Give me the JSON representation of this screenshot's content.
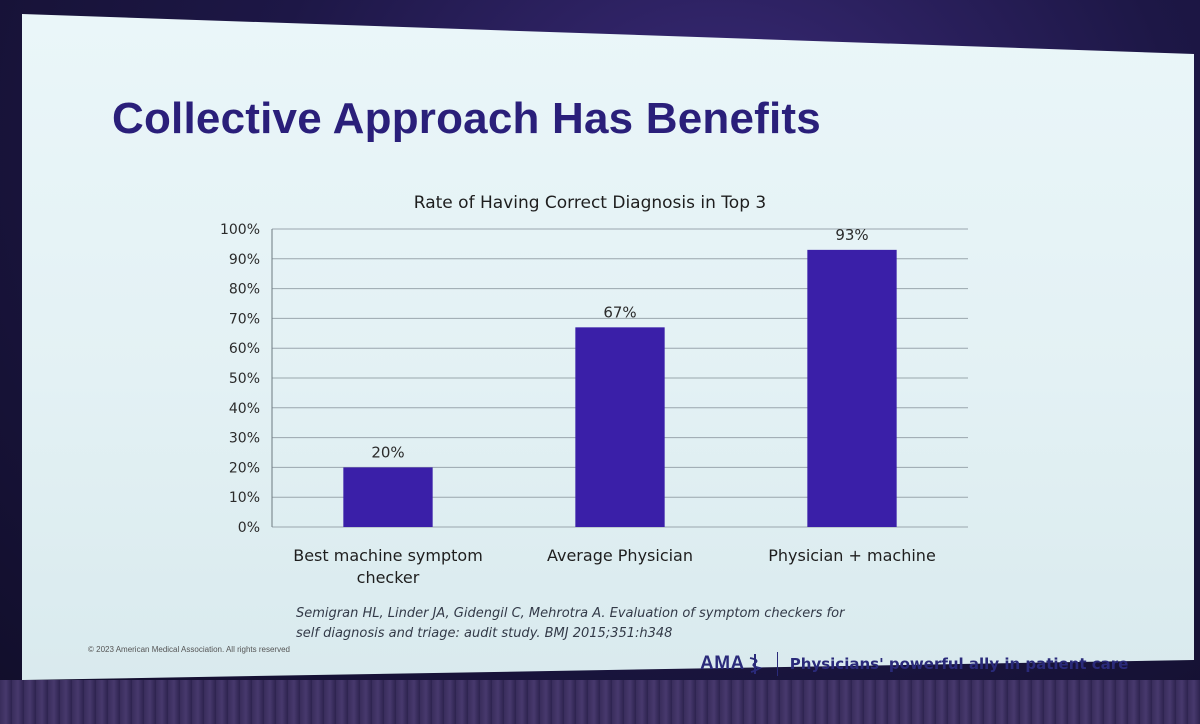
{
  "slide": {
    "title": "Collective Approach Has Benefits",
    "citation_line1": "Semigran HL, Linder JA, Gidengil C, Mehrotra A. Evaluation of symptom checkers for",
    "citation_line2": "self diagnosis and triage: audit study. BMJ 2015;351:h348",
    "copyright": "© 2023 American Medical Association. All rights reserved",
    "footer": {
      "logo_text": "AMA",
      "tagline": "Physicians' powerful ally in patient care"
    }
  },
  "colors": {
    "bar": "#3a1fa8",
    "title": "#2a1f7a",
    "grid": "#9aa6ad"
  },
  "chart_data": {
    "type": "bar",
    "title": "Rate of Having Correct Diagnosis in Top 3",
    "categories": [
      [
        "Best machine symptom",
        "checker"
      ],
      [
        "Average Physician"
      ],
      [
        "Physician + machine"
      ]
    ],
    "values": [
      20,
      67,
      93
    ],
    "data_labels": [
      "20%",
      "67%",
      "93%"
    ],
    "ylim": [
      0,
      100
    ],
    "yticks": [
      "0%",
      "10%",
      "20%",
      "30%",
      "40%",
      "50%",
      "60%",
      "70%",
      "80%",
      "90%",
      "100%"
    ],
    "grid": true,
    "legend": "none"
  }
}
